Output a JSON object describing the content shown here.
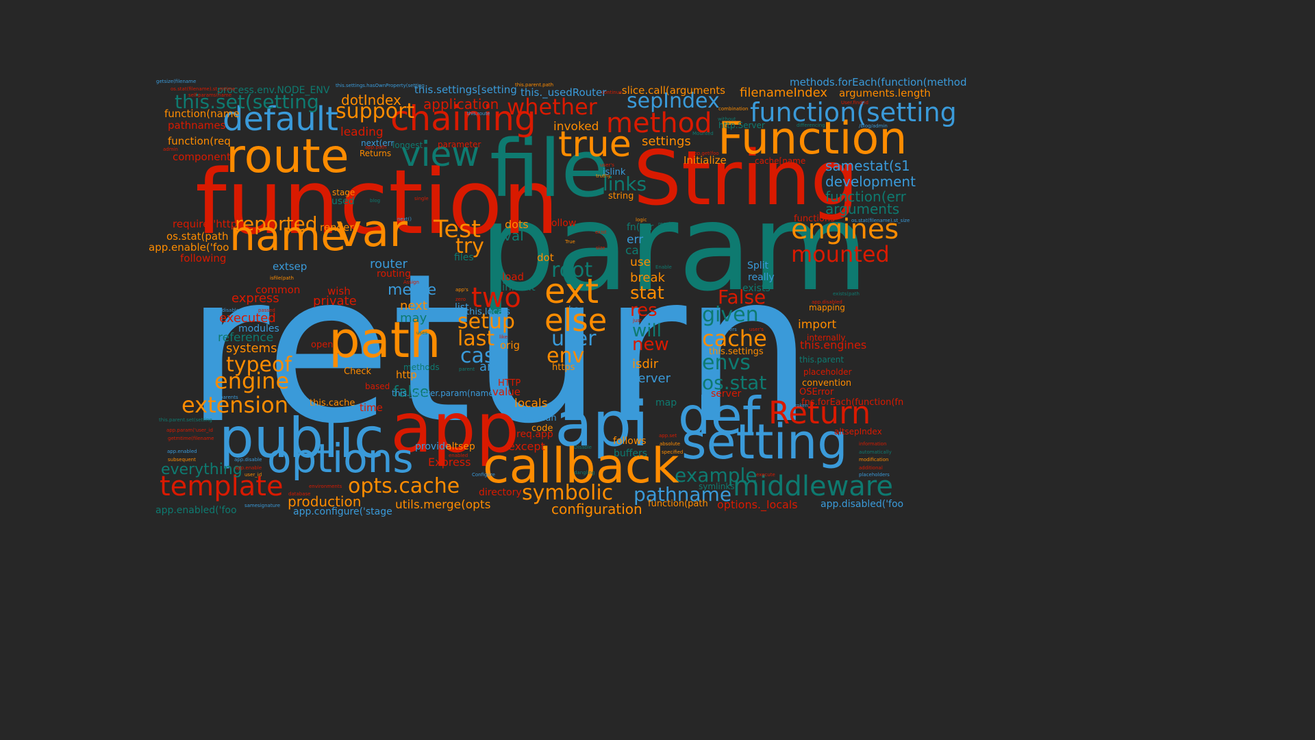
{
  "colors": {
    "background": "#272727",
    "blue": "#3a9ad9",
    "teal": "#0e7a70",
    "orange": "#ff8c00",
    "red": "#d91a00"
  },
  "words": [
    {
      "text": "return",
      "color": "blue"
    },
    {
      "text": "param",
      "color": "teal"
    },
    {
      "text": "function",
      "color": "red"
    },
    {
      "text": "file",
      "color": "teal"
    },
    {
      "text": "String",
      "color": "red"
    },
    {
      "text": "app",
      "color": "red"
    },
    {
      "text": "api",
      "color": "blue"
    },
    {
      "text": "route",
      "color": "orange"
    },
    {
      "text": "Function",
      "color": "orange"
    },
    {
      "text": "public",
      "color": "blue"
    },
    {
      "text": "def",
      "color": "blue"
    },
    {
      "text": "setting",
      "color": "blue"
    },
    {
      "text": "callback",
      "color": "orange"
    },
    {
      "text": "var",
      "color": "orange"
    },
    {
      "text": "name",
      "color": "orange"
    },
    {
      "text": "path",
      "color": "orange"
    },
    {
      "text": "options",
      "color": "blue"
    },
    {
      "text": "chaining",
      "color": "red"
    },
    {
      "text": "view",
      "color": "teal"
    },
    {
      "text": "default",
      "color": "blue"
    },
    {
      "text": "true",
      "color": "orange"
    },
    {
      "text": "template",
      "color": "red"
    },
    {
      "text": "middleware",
      "color": "teal"
    },
    {
      "text": "Return",
      "color": "red"
    },
    {
      "text": "engines",
      "color": "orange"
    },
    {
      "text": "method",
      "color": "red"
    },
    {
      "text": "function(setting",
      "color": "blue"
    },
    {
      "text": "ext",
      "color": "orange"
    },
    {
      "text": "Test",
      "color": "orange"
    },
    {
      "text": "mounted",
      "color": "red"
    },
    {
      "text": "else",
      "color": "orange"
    },
    {
      "text": "two",
      "color": "red"
    },
    {
      "text": "opts.cache",
      "color": "orange"
    },
    {
      "text": "extension",
      "color": "orange"
    },
    {
      "text": "whether",
      "color": "red"
    },
    {
      "text": "root",
      "color": "teal"
    },
    {
      "text": "cache",
      "color": "orange"
    },
    {
      "text": "given",
      "color": "teal"
    },
    {
      "text": "this.set(setting",
      "color": "teal"
    },
    {
      "text": "envs",
      "color": "teal"
    },
    {
      "text": "engine",
      "color": "orange"
    },
    {
      "text": "symbolic",
      "color": "orange"
    },
    {
      "text": "sepIndex",
      "color": "blue"
    },
    {
      "text": "user",
      "color": "blue"
    },
    {
      "text": "example",
      "color": "teal"
    },
    {
      "text": "setup",
      "color": "orange"
    },
    {
      "text": "last",
      "color": "orange"
    },
    {
      "text": "case",
      "color": "blue"
    },
    {
      "text": "env",
      "color": "orange"
    },
    {
      "text": "pathname",
      "color": "blue"
    },
    {
      "text": "support",
      "color": "orange"
    },
    {
      "text": "reported",
      "color": "orange"
    },
    {
      "text": "typeof",
      "color": "orange"
    },
    {
      "text": "os.stat",
      "color": "teal"
    },
    {
      "text": "try",
      "color": "orange"
    },
    {
      "text": "links",
      "color": "teal"
    },
    {
      "text": "stat",
      "color": "orange"
    },
    {
      "text": "res",
      "color": "red"
    },
    {
      "text": "will",
      "color": "teal"
    },
    {
      "text": "new",
      "color": "red"
    },
    {
      "text": "False",
      "color": "red"
    },
    {
      "text": "everything",
      "color": "teal"
    },
    {
      "text": "production",
      "color": "orange"
    },
    {
      "text": "configuration",
      "color": "orange"
    },
    {
      "text": "samestat(s1",
      "color": "blue"
    },
    {
      "text": "development",
      "color": "blue"
    },
    {
      "text": "function(err",
      "color": "teal"
    },
    {
      "text": "arguments",
      "color": "teal"
    },
    {
      "text": "filenameIndex",
      "color": "orange"
    },
    {
      "text": "arguments.length",
      "color": "orange"
    },
    {
      "text": "methods.forEach(function(method",
      "color": "blue"
    },
    {
      "text": "process.env.NODE_ENV",
      "color": "teal"
    },
    {
      "text": "this.settings[setting",
      "color": "blue"
    },
    {
      "text": "this._usedRouter",
      "color": "blue"
    },
    {
      "text": ".slice.call(arguments",
      "color": "orange"
    },
    {
      "text": "application",
      "color": "red"
    },
    {
      "text": "dotIndex",
      "color": "orange"
    },
    {
      "text": "leading",
      "color": "red"
    },
    {
      "text": "invoked",
      "color": "orange"
    },
    {
      "text": "settings",
      "color": "orange"
    },
    {
      "text": "Initialize",
      "color": "orange"
    },
    {
      "text": "function(name",
      "color": "orange"
    },
    {
      "text": "pathnames",
      "color": "red"
    },
    {
      "text": "function(req",
      "color": "orange"
    },
    {
      "text": "component",
      "color": "red"
    },
    {
      "text": "require('http",
      "color": "red"
    },
    {
      "text": "os.stat(path",
      "color": "orange"
    },
    {
      "text": "app.enable('foo",
      "color": "orange"
    },
    {
      "text": "following",
      "color": "red"
    },
    {
      "text": "render",
      "color": "orange"
    },
    {
      "text": "router",
      "color": "blue"
    },
    {
      "text": "routing",
      "color": "red"
    },
    {
      "text": "extsep",
      "color": "blue"
    },
    {
      "text": "common",
      "color": "red"
    },
    {
      "text": "express",
      "color": "red"
    },
    {
      "text": "executed",
      "color": "red"
    },
    {
      "text": "modules",
      "color": "blue"
    },
    {
      "text": "reference",
      "color": "teal"
    },
    {
      "text": "systems",
      "color": "orange"
    },
    {
      "text": "merge",
      "color": "blue"
    },
    {
      "text": "next",
      "color": "orange"
    },
    {
      "text": "may",
      "color": "teal"
    },
    {
      "text": "private",
      "color": "red"
    },
    {
      "text": "wish",
      "color": "red"
    },
    {
      "text": "http",
      "color": "orange"
    },
    {
      "text": "false",
      "color": "teal"
    },
    {
      "text": "this.cache",
      "color": "orange"
    },
    {
      "text": "time",
      "color": "red"
    },
    {
      "text": "work",
      "color": "blue"
    },
    {
      "text": "Check",
      "color": "orange"
    },
    {
      "text": "open",
      "color": "red"
    },
    {
      "text": "dots",
      "color": "orange"
    },
    {
      "text": "val",
      "color": "teal"
    },
    {
      "text": "follow",
      "color": "red"
    },
    {
      "text": "files",
      "color": "teal"
    },
    {
      "text": "load",
      "color": "red"
    },
    {
      "text": "inherit",
      "color": "teal"
    },
    {
      "text": "dot",
      "color": "orange"
    },
    {
      "text": "bar",
      "color": "blue"
    },
    {
      "text": "this.locals",
      "color": "blue"
    },
    {
      "text": "list",
      "color": "blue"
    },
    {
      "text": "orig",
      "color": "orange"
    },
    {
      "text": "args",
      "color": "blue"
    },
    {
      "text": "https",
      "color": "orange"
    },
    {
      "text": "HTTP",
      "color": "red"
    },
    {
      "text": "value",
      "color": "red"
    },
    {
      "text": "locals",
      "color": "orange"
    },
    {
      "text": "Boolean",
      "color": "blue"
    },
    {
      "text": "code",
      "color": "orange"
    },
    {
      "text": "req.app",
      "color": "red"
    },
    {
      "text": "except",
      "color": "red"
    },
    {
      "text": "provide",
      "color": "blue"
    },
    {
      "text": "altsep",
      "color": "orange"
    },
    {
      "text": "Express",
      "color": "red"
    },
    {
      "text": "directory",
      "color": "red"
    },
    {
      "text": "utils.merge(opts",
      "color": "orange"
    },
    {
      "text": "app.configure('stage",
      "color": "blue"
    },
    {
      "text": "app.enabled('foo",
      "color": "teal"
    },
    {
      "text": "fn(err",
      "color": "teal"
    },
    {
      "text": "err",
      "color": "blue"
    },
    {
      "text": "can",
      "color": "teal"
    },
    {
      "text": "use",
      "color": "orange"
    },
    {
      "text": "break",
      "color": "orange"
    },
    {
      "text": "isdir",
      "color": "orange"
    },
    {
      "text": "Server",
      "color": "blue"
    },
    {
      "text": "map",
      "color": "teal"
    },
    {
      "text": "follows",
      "color": "orange"
    },
    {
      "text": "buffers",
      "color": "teal"
    },
    {
      "text": "symlinks",
      "color": "teal"
    },
    {
      "text": "function(path",
      "color": "orange"
    },
    {
      "text": "options._locals",
      "color": "red"
    },
    {
      "text": "app.disabled('foo",
      "color": "blue"
    },
    {
      "text": "Split",
      "color": "blue"
    },
    {
      "text": "really",
      "color": "blue"
    },
    {
      "text": "exists",
      "color": "teal"
    },
    {
      "text": "this.settings",
      "color": "orange"
    },
    {
      "text": "convention",
      "color": "orange"
    },
    {
      "text": "server",
      "color": "red"
    },
    {
      "text": "OSError",
      "color": "red"
    },
    {
      "text": "import",
      "color": "orange"
    },
    {
      "text": "this.engines",
      "color": "red"
    },
    {
      "text": "this.parent",
      "color": "teal"
    },
    {
      "text": "placeholder",
      "color": "red"
    },
    {
      "text": "fns.forEach(function(fn",
      "color": "red"
    },
    {
      "text": "altsepIndex",
      "color": "red"
    },
    {
      "text": "mapping",
      "color": "orange"
    },
    {
      "text": "internally",
      "color": "red"
    },
    {
      "text": "functions",
      "color": "red"
    },
    {
      "text": "islink",
      "color": "blue"
    },
    {
      "text": "string",
      "color": "orange"
    },
    {
      "text": "cache[name",
      "color": "red"
    },
    {
      "text": "http.Server",
      "color": "teal"
    },
    {
      "text": "next(err",
      "color": "blue"
    },
    {
      "text": "parameter",
      "color": "red"
    },
    {
      "text": "longest",
      "color": "teal"
    },
    {
      "text": "Returns",
      "color": "orange"
    },
    {
      "text": "based",
      "color": "red"
    },
    {
      "text": "stage",
      "color": "orange"
    },
    {
      "text": "used",
      "color": "teal"
    },
    {
      "text": "methods",
      "color": "teal"
    },
    {
      "text": "this._router.param(name",
      "color": "blue"
    },
    {
      "text": "getsize(filename",
      "color": "blue"
    },
    {
      "text": "os.stat(filename).st_mtime",
      "color": "red"
    },
    {
      "text": "this.settings.hasOwnProperty(setting",
      "color": "blue"
    },
    {
      "text": "this.parent.path",
      "color": "orange"
    },
    {
      "text": "continue",
      "color": "red"
    },
    {
      "text": "this.route",
      "color": "blue"
    },
    {
      "text": "combination",
      "color": "orange"
    },
    {
      "text": "without",
      "color": "teal"
    },
    {
      "text": "differencing",
      "color": "teal"
    },
    {
      "text": "User.find(id",
      "color": "red"
    },
    {
      "text": "/blog/admin",
      "color": "blue"
    },
    {
      "text": "self.params(name",
      "color": "red"
    },
    {
      "text": "admin",
      "color": "red"
    },
    {
      "text": "app.path",
      "color": "red"
    },
    {
      "text": "app.get(foo",
      "color": "red"
    },
    {
      "text": "Mounted",
      "color": "teal"
    },
    {
      "text": "user's",
      "color": "red"
    },
    {
      "text": "single",
      "color": "red"
    },
    {
      "text": "blog",
      "color": "teal"
    },
    {
      "text": "next()",
      "color": "blue"
    },
    {
      "text": "truthy",
      "color": "orange"
    },
    {
      "text": "logic",
      "color": "orange"
    },
    {
      "text": "regular",
      "color": "teal"
    },
    {
      "text": "True",
      "color": "orange"
    },
    {
      "text": "exist",
      "color": "red"
    },
    {
      "text": "size",
      "color": "red"
    },
    {
      "text": "os.stat(filename).st_size",
      "color": "blue"
    },
    {
      "text": "isfile(path",
      "color": "orange"
    },
    {
      "text": "Assign",
      "color": "red"
    },
    {
      "text": "Enable",
      "color": "teal"
    },
    {
      "text": "app.disabled",
      "color": "red"
    },
    {
      "text": "exists(path",
      "color": "teal"
    },
    {
      "text": "app's",
      "color": "orange"
    },
    {
      "text": "zero",
      "color": "red"
    },
    {
      "text": "disabled",
      "color": "blue"
    },
    {
      "text": "passed",
      "color": "red"
    },
    {
      "text": "just",
      "color": "red"
    },
    {
      "text": "servers",
      "color": "blue"
    },
    {
      "text": "user's",
      "color": "red"
    },
    {
      "text": "uses",
      "color": "teal"
    },
    {
      "text": "like",
      "color": "red"
    },
    {
      "text": "parent",
      "color": "teal"
    },
    {
      "text": "parents",
      "color": "blue"
    },
    {
      "text": "broken",
      "color": "blue"
    },
    {
      "text": "this.parent.set(setting",
      "color": "teal"
    },
    {
      "text": "app.param('user_id",
      "color": "red"
    },
    {
      "text": "getmtime(filename",
      "color": "red"
    },
    {
      "text": "subsequent",
      "color": "orange"
    },
    {
      "text": "app.enabled",
      "color": "blue"
    },
    {
      "text": "app.disable",
      "color": "blue"
    },
    {
      "text": "app.enable",
      "color": "red"
    },
    {
      "text": "user_id",
      "color": "orange"
    },
    {
      "text": "enabled",
      "color": "red"
    },
    {
      "text": "Configure",
      "color": "blue"
    },
    {
      "text": "Disable",
      "color": "teal"
    },
    {
      "text": "dangling",
      "color": "teal"
    },
    {
      "text": "app.set",
      "color": "red"
    },
    {
      "text": "absolute",
      "color": "orange"
    },
    {
      "text": "specified",
      "color": "orange"
    },
    {
      "text": "execute",
      "color": "red"
    },
    {
      "text": "environments",
      "color": "red"
    },
    {
      "text": "database",
      "color": "red"
    },
    {
      "text": "samesignature",
      "color": "blue"
    },
    {
      "text": "information",
      "color": "red"
    },
    {
      "text": "automatically",
      "color": "teal"
    },
    {
      "text": "modification",
      "color": "orange"
    },
    {
      "text": "additional",
      "color": "red"
    },
    {
      "text": "placeholders",
      "color": "blue"
    }
  ]
}
